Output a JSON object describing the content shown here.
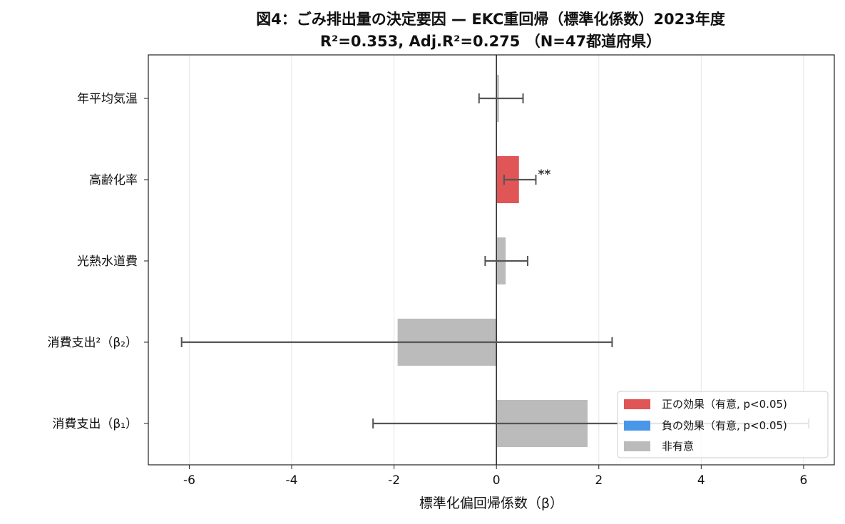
{
  "chart_data": {
    "type": "bar",
    "orientation": "horizontal",
    "title": "図4：ごみ排出量の決定要因 — EKC重回帰（標準化係数）2023年度",
    "subtitle": "R²=0.353, Adj.R²=0.275 （N=47都道府県）",
    "xlabel": "標準化偏回帰係数（β）",
    "ylabel": "",
    "xlim": [
      -6.8,
      6.6
    ],
    "xticks": [
      -6,
      -4,
      -2,
      0,
      2,
      4,
      6
    ],
    "xtick_labels": [
      "-6",
      "-4",
      "-2",
      "0",
      "2",
      "4",
      "6"
    ],
    "grid": "vertical",
    "categories": [
      "年平均気温",
      "高齢化率",
      "光熱水道費",
      "消費支出²（β₂）",
      "消費支出（β₁）"
    ],
    "values": [
      0.05,
      0.44,
      0.18,
      -1.93,
      1.78
    ],
    "ci_low": [
      -0.34,
      0.15,
      -0.22,
      -6.15,
      -2.41
    ],
    "ci_high": [
      0.52,
      0.77,
      0.61,
      2.26,
      6.1
    ],
    "significance": [
      "",
      "**",
      "",
      "",
      ""
    ],
    "effect": [
      "none",
      "positive",
      "none",
      "none",
      "none"
    ],
    "colors": {
      "positive": "#e05556",
      "negative": "#4a97ea",
      "none": "#bbbbbb",
      "errorbar": "#555555",
      "zero_line": "#333333",
      "grid": "#e6e6e6"
    },
    "legend": {
      "position": "lower-right",
      "entries": [
        {
          "label": "正の効果（有意, p<0.05)",
          "effect": "positive"
        },
        {
          "label": "負の効果（有意, p<0.05)",
          "effect": "negative"
        },
        {
          "label": "非有意",
          "effect": "none"
        }
      ]
    }
  }
}
